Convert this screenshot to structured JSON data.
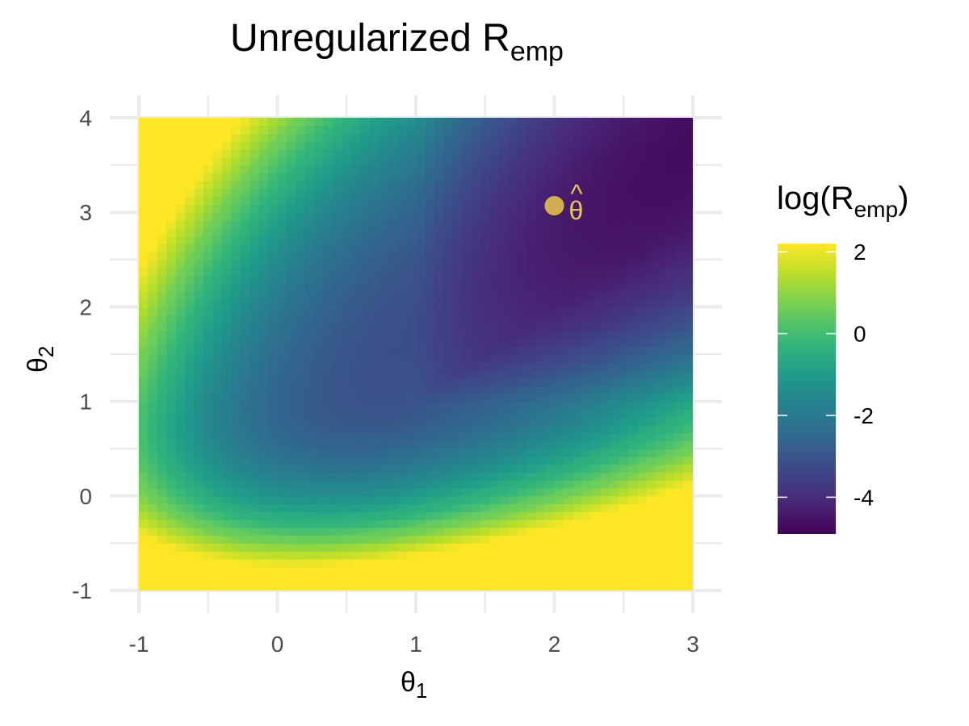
{
  "chart_data": {
    "type": "heatmap",
    "title": {
      "main": "Unregularized R",
      "sub": "emp"
    },
    "xlabel": {
      "symbol": "θ",
      "sub": "1"
    },
    "ylabel": {
      "symbol": "θ",
      "sub": "2"
    },
    "xlim": [
      -1,
      3
    ],
    "ylim": [
      -1,
      4
    ],
    "x_ticks": [
      -1,
      0,
      1,
      2,
      3
    ],
    "y_ticks": [
      -1,
      0,
      1,
      2,
      3,
      4
    ],
    "grid": true,
    "colormap": "viridis",
    "colorbar": {
      "title": {
        "open": "log(R",
        "sub": "emp",
        "close": ")"
      },
      "range": [
        -4.9,
        2.2
      ],
      "ticks": [
        2,
        0,
        -2,
        -4
      ]
    },
    "contour_levels": [
      -4.2,
      -3.3,
      -2.6,
      -1.6,
      -0.4,
      0.6
    ],
    "contour_opacity": 0.55,
    "optimum": {
      "x": 2.0,
      "y": 3.07,
      "label": "θ",
      "accent": "^",
      "color": "#e8c74f"
    },
    "colors": {
      "viridis": [
        "#440154",
        "#482878",
        "#3e4989",
        "#31688e",
        "#26828e",
        "#1f9e89",
        "#35b779",
        "#6ece58",
        "#b5de2b",
        "#fde725"
      ],
      "grid": "#ebebeb",
      "tick_label": "#4d4d4d"
    }
  }
}
